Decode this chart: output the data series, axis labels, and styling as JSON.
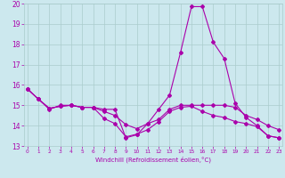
{
  "xlabel": "Windchill (Refroidissement éolien,°C)",
  "bg_color": "#cce8ee",
  "grid_color": "#aacccc",
  "line_color": "#aa00aa",
  "xmin": 0,
  "xmax": 23,
  "ymin": 13,
  "ymax": 20,
  "series": [
    {
      "x": [
        0,
        1,
        2,
        3,
        4,
        5,
        6,
        7,
        8,
        9,
        10,
        11,
        12,
        13,
        14,
        15,
        16,
        17,
        18,
        19,
        20,
        21,
        22,
        23
      ],
      "y": [
        15.8,
        15.3,
        14.8,
        15.0,
        15.0,
        14.9,
        14.9,
        14.8,
        14.8,
        13.4,
        13.55,
        14.1,
        14.8,
        15.5,
        17.6,
        19.85,
        19.85,
        18.1,
        17.3,
        15.1,
        14.4,
        14.0,
        13.5,
        13.4
      ]
    },
    {
      "x": [
        0,
        1,
        2,
        3,
        4,
        5,
        6,
        7,
        8,
        9,
        10,
        11,
        12,
        13,
        14,
        15,
        16,
        17,
        18,
        19,
        20,
        21,
        22,
        23
      ],
      "y": [
        15.8,
        15.3,
        14.85,
        14.95,
        15.0,
        14.9,
        14.9,
        14.7,
        14.5,
        14.05,
        13.85,
        14.1,
        14.3,
        14.8,
        15.0,
        15.0,
        15.0,
        15.0,
        15.0,
        14.9,
        14.5,
        14.3,
        14.0,
        13.8
      ]
    },
    {
      "x": [
        0,
        1,
        2,
        3,
        4,
        5,
        6,
        7,
        8,
        9,
        10,
        11,
        12,
        13,
        14,
        15,
        16,
        17,
        18,
        19,
        20,
        21,
        22,
        23
      ],
      "y": [
        15.8,
        15.3,
        14.85,
        14.95,
        15.0,
        14.9,
        14.9,
        14.35,
        14.1,
        13.45,
        13.58,
        13.8,
        14.2,
        14.7,
        14.9,
        14.95,
        14.7,
        14.5,
        14.4,
        14.2,
        14.1,
        13.95,
        13.5,
        13.4
      ]
    }
  ]
}
